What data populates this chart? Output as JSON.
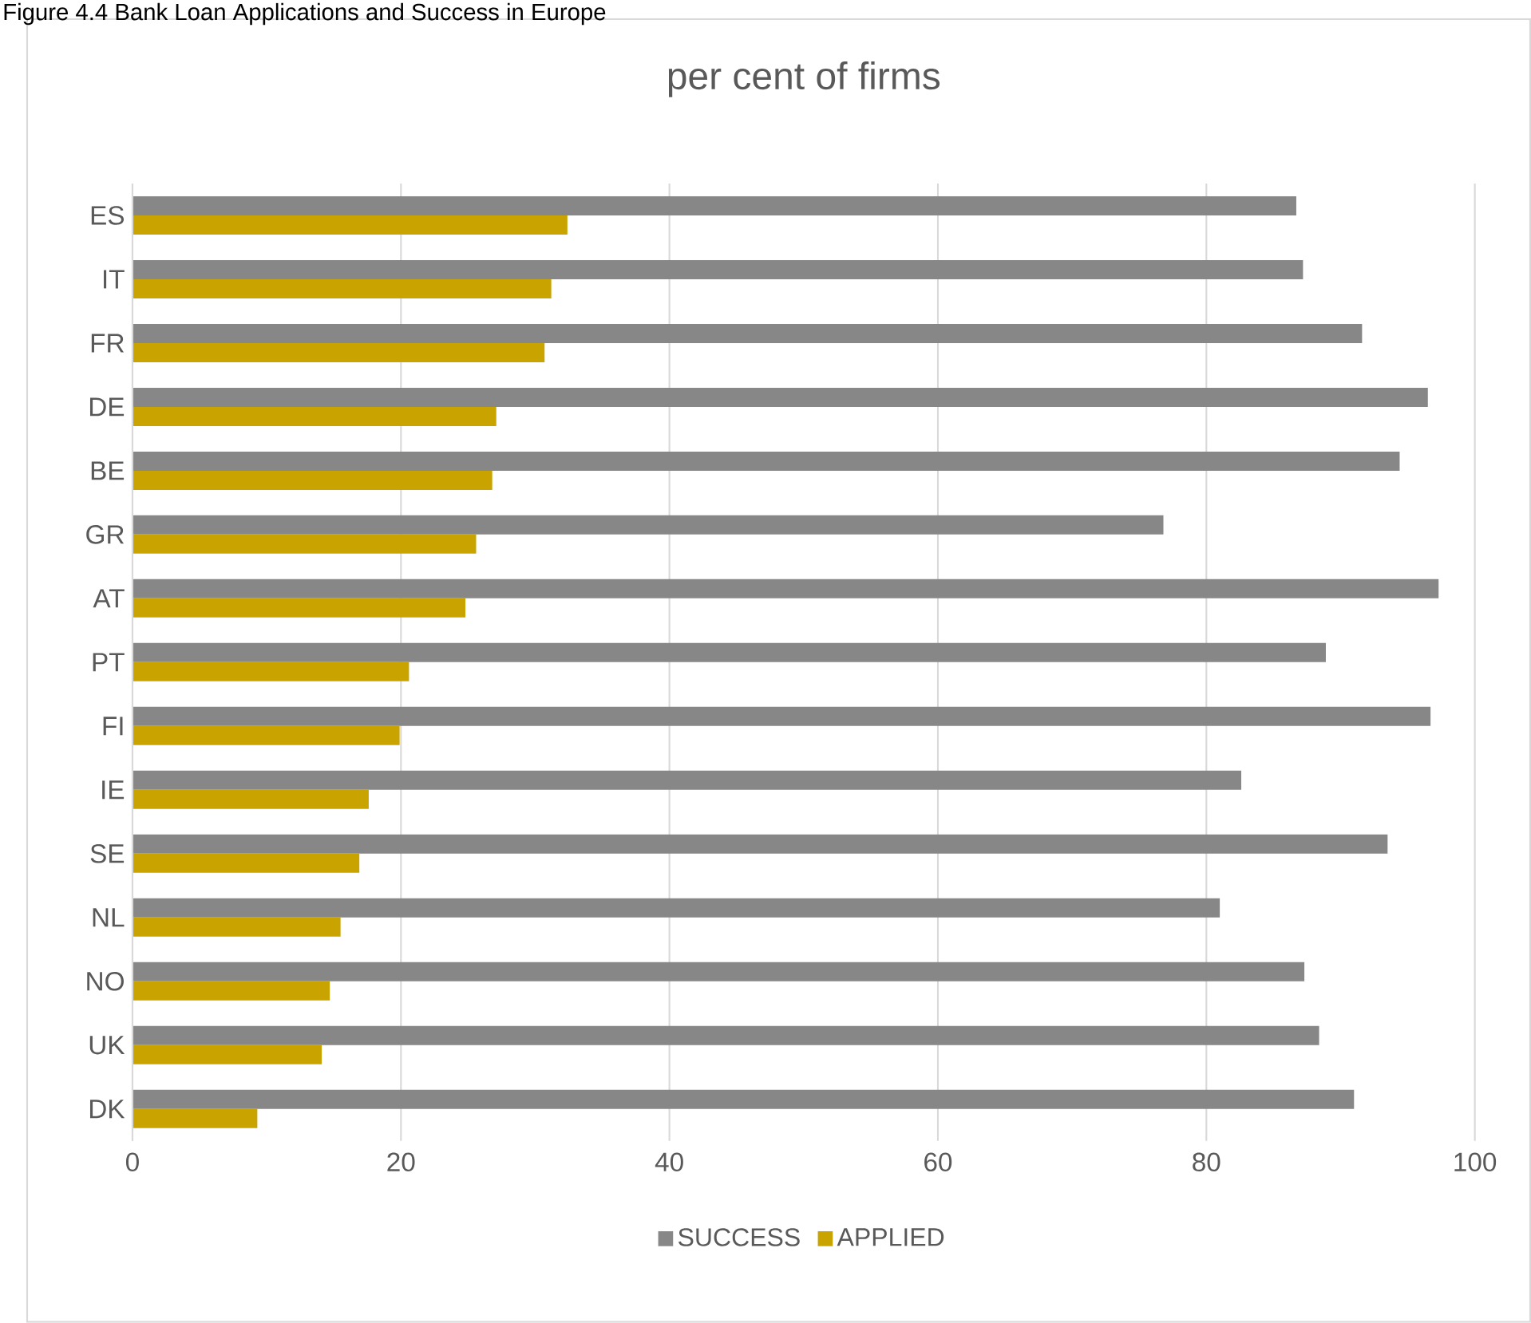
{
  "chart_data": {
    "type": "bar",
    "orientation": "horizontal",
    "title": "per cent of firms",
    "annotations": [
      "Figure 4.4 Bank Loan Applications and Success in Europe"
    ],
    "categories": [
      "ES",
      "IT",
      "FR",
      "DE",
      "BE",
      "GR",
      "AT",
      "PT",
      "FI",
      "IE",
      "SE",
      "NL",
      "NO",
      "UK",
      "DK"
    ],
    "series": [
      {
        "name": "SUCCESS",
        "color": "#878787",
        "values": [
          86.7,
          87.2,
          91.6,
          96.5,
          94.4,
          76.8,
          97.3,
          88.9,
          96.7,
          82.6,
          93.5,
          81.0,
          87.3,
          88.4,
          91.0
        ]
      },
      {
        "name": "APPLIED",
        "color": "#c9a400",
        "values": [
          32.4,
          31.2,
          30.7,
          27.1,
          26.8,
          25.6,
          24.8,
          20.6,
          19.9,
          17.6,
          16.9,
          15.5,
          14.7,
          14.1,
          9.3
        ]
      }
    ],
    "xlim": [
      0,
      100
    ],
    "xticks": [
      0,
      20,
      40,
      60,
      80,
      100
    ],
    "grid": "x",
    "legend": "bottom"
  }
}
